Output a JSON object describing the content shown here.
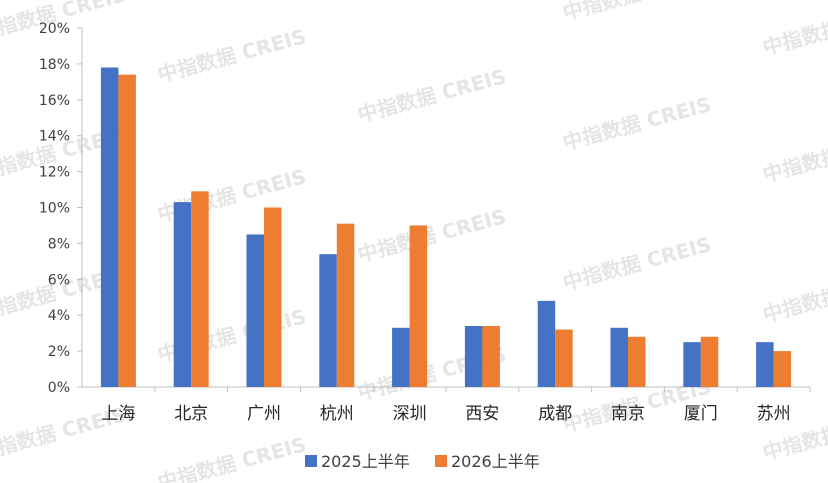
{
  "chart_data": {
    "type": "bar",
    "title": "",
    "xlabel": "",
    "ylabel": "",
    "ylim": [
      0,
      20
    ],
    "yticks": [
      "0%",
      "2%",
      "4%",
      "6%",
      "8%",
      "10%",
      "12%",
      "14%",
      "16%",
      "18%",
      "20%"
    ],
    "categories": [
      "上海",
      "北京",
      "广州",
      "杭州",
      "深圳",
      "西安",
      "成都",
      "南京",
      "厦门",
      "苏州"
    ],
    "series": [
      {
        "name": "2025上半年",
        "color": "#4472C4",
        "values": [
          17.8,
          10.3,
          8.5,
          7.4,
          3.3,
          3.4,
          4.8,
          3.3,
          2.5,
          2.5
        ]
      },
      {
        "name": "2026上半年",
        "color": "#ED7D31",
        "values": [
          17.4,
          10.9,
          10.0,
          9.1,
          9.0,
          3.4,
          3.2,
          2.8,
          2.8,
          2.0
        ]
      }
    ],
    "legend": "bottom",
    "grid": false
  },
  "watermark": "中指数据 CREIS"
}
